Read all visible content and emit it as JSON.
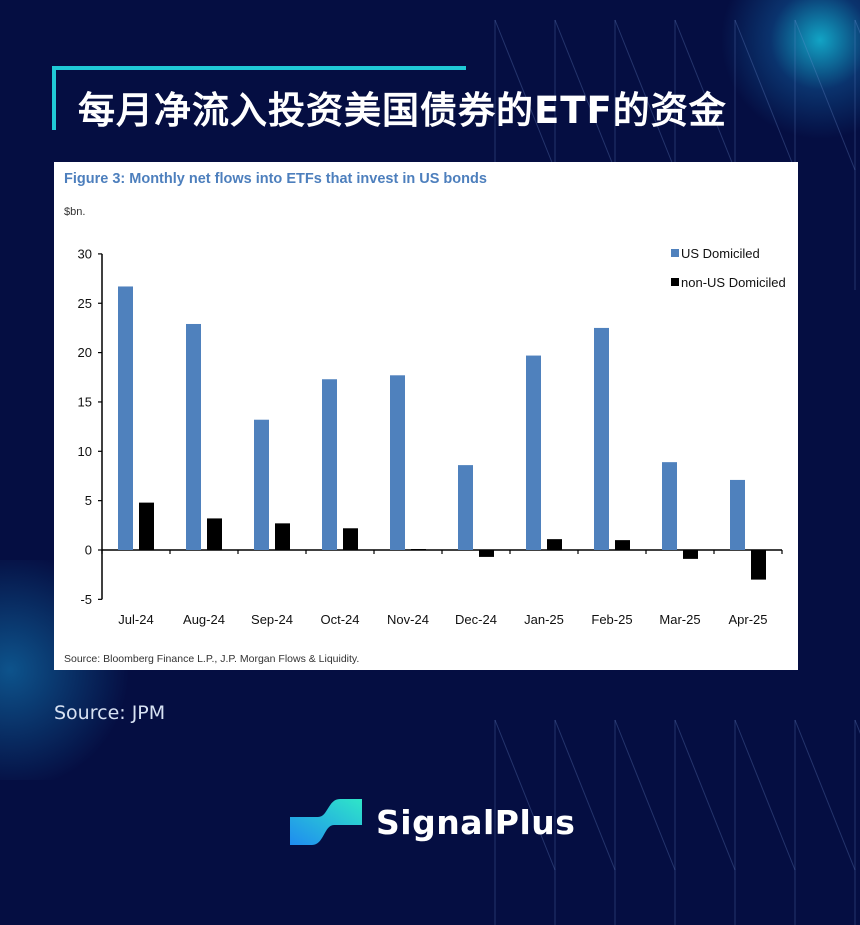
{
  "header": {
    "title": "每月净流入投资美国债券的ETF的资金"
  },
  "figure": {
    "title": "Figure 3: Monthly net flows into ETFs that invest in US bonds",
    "unit": "$bn.",
    "source_note": "Source: Bloomberg Finance L.P., J.P. Morgan Flows & Liquidity."
  },
  "footer": {
    "source": "Source: JPM",
    "brand": "SignalPlus"
  },
  "colors": {
    "background": "#050e42",
    "accent": "#20c9d6",
    "us_series": "#4f81bd",
    "non_us_series": "#000000",
    "figure_title": "#4d7fbd"
  },
  "chart_data": {
    "type": "bar",
    "title": "Figure 3: Monthly net flows into ETFs that invest in US bonds",
    "xlabel": "",
    "ylabel": "$bn.",
    "ylim": [
      -5,
      30
    ],
    "yticks": [
      30,
      25,
      20,
      15,
      10,
      5,
      0,
      -5
    ],
    "grid": false,
    "legend_position": "top-right",
    "categories": [
      "Jul-24",
      "Aug-24",
      "Sep-24",
      "Oct-24",
      "Nov-24",
      "Dec-24",
      "Jan-25",
      "Feb-25",
      "Mar-25",
      "Apr-25"
    ],
    "series": [
      {
        "name": "US Domiciled",
        "color": "#4f81bd",
        "values": [
          26.7,
          22.9,
          13.2,
          17.3,
          17.7,
          8.6,
          19.7,
          22.5,
          8.9,
          7.1
        ]
      },
      {
        "name": "non-US Domiciled",
        "color": "#000000",
        "values": [
          4.8,
          3.2,
          2.7,
          2.2,
          0.1,
          -0.7,
          1.1,
          1.0,
          -0.9,
          -3.0
        ]
      }
    ],
    "source": "Source: Bloomberg Finance L.P., J.P. Morgan Flows & Liquidity."
  }
}
